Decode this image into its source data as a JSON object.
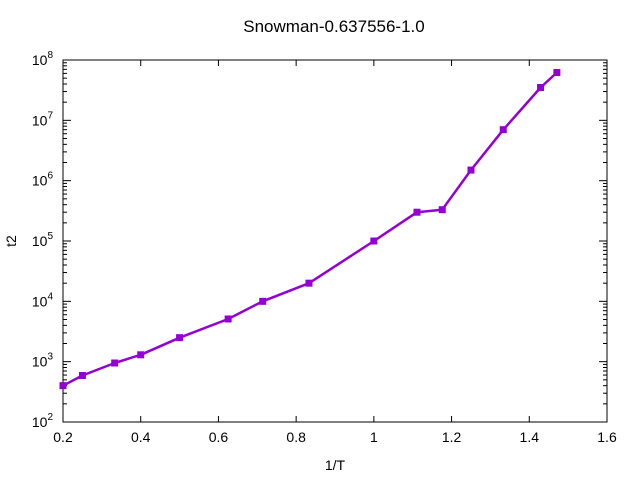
{
  "chart_data": {
    "type": "line",
    "title": "Snowman-0.637556-1.0",
    "xlabel": "1/T",
    "ylabel": "t2",
    "xlim": [
      0.2,
      1.6
    ],
    "ylim": [
      100,
      100000000
    ],
    "yscale": "log",
    "grid": false,
    "x_ticks": [
      {
        "value": 0.2,
        "label": "0.2"
      },
      {
        "value": 0.4,
        "label": "0.4"
      },
      {
        "value": 0.6,
        "label": "0.6"
      },
      {
        "value": 0.8,
        "label": "0.8"
      },
      {
        "value": 1.0,
        "label": "1"
      },
      {
        "value": 1.2,
        "label": "1.2"
      },
      {
        "value": 1.4,
        "label": "1.4"
      },
      {
        "value": 1.6,
        "label": "1.6"
      }
    ],
    "y_ticks": [
      {
        "value": 100,
        "base": "10",
        "exp": "2"
      },
      {
        "value": 1000,
        "base": "10",
        "exp": "3"
      },
      {
        "value": 10000,
        "base": "10",
        "exp": "4"
      },
      {
        "value": 100000,
        "base": "10",
        "exp": "5"
      },
      {
        "value": 1000000,
        "base": "10",
        "exp": "6"
      },
      {
        "value": 10000000,
        "base": "10",
        "exp": "7"
      },
      {
        "value": 100000000,
        "base": "10",
        "exp": "8"
      }
    ],
    "series": [
      {
        "color": "#9400d3",
        "points": [
          {
            "x": 0.2,
            "y": 400
          },
          {
            "x": 0.25,
            "y": 590
          },
          {
            "x": 0.333,
            "y": 950
          },
          {
            "x": 0.4,
            "y": 1300
          },
          {
            "x": 0.5,
            "y": 2500
          },
          {
            "x": 0.625,
            "y": 5100
          },
          {
            "x": 0.714,
            "y": 10000
          },
          {
            "x": 0.833,
            "y": 20000
          },
          {
            "x": 1.0,
            "y": 100000
          },
          {
            "x": 1.111,
            "y": 300000
          },
          {
            "x": 1.176,
            "y": 330000
          },
          {
            "x": 1.25,
            "y": 1500000
          },
          {
            "x": 1.333,
            "y": 7000000
          },
          {
            "x": 1.429,
            "y": 35000000
          },
          {
            "x": 1.471,
            "y": 62000000
          }
        ]
      }
    ]
  }
}
